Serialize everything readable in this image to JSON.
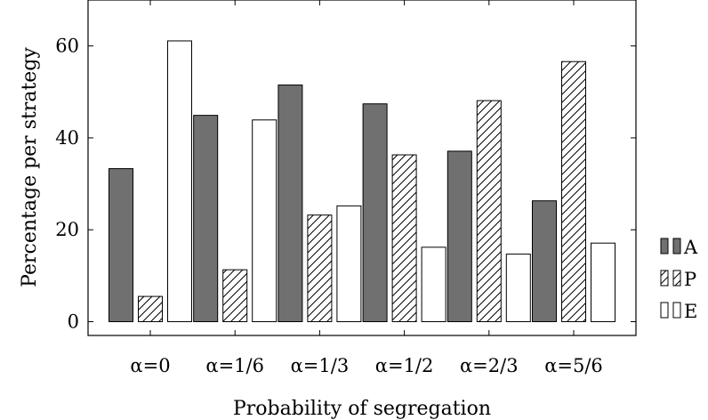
{
  "chart_data": {
    "type": "bar",
    "title": "",
    "xlabel": "Probability of segregation",
    "ylabel": "Percentage per strategy",
    "categories": [
      "α=0",
      "α=1/6",
      "α=1/3",
      "α=1/2",
      "α=2/3",
      "α=5/6"
    ],
    "y_ticks": [
      "0",
      "20",
      "40",
      "60"
    ],
    "ylim": [
      -3,
      70
    ],
    "grid": false,
    "legend_position": "right",
    "series": [
      {
        "name": "A",
        "fill": "#707070",
        "pattern": "solid",
        "values": [
          33.3,
          44.9,
          51.5,
          47.4,
          37.1,
          26.3
        ]
      },
      {
        "name": "P",
        "fill": "#ffffff",
        "pattern": "hatch",
        "values": [
          5.5,
          11.3,
          23.2,
          36.3,
          48.1,
          56.6
        ]
      },
      {
        "name": "E",
        "fill": "#ffffff",
        "pattern": "plain",
        "values": [
          61.1,
          43.9,
          25.2,
          16.2,
          14.7,
          17.1
        ]
      }
    ]
  }
}
